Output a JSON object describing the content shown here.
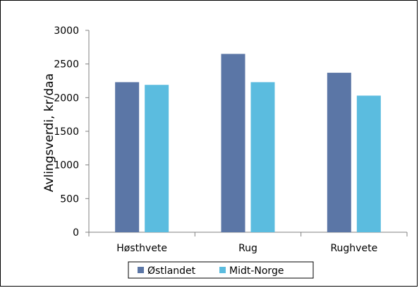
{
  "chart_data": {
    "type": "bar",
    "title": "",
    "xlabel": "",
    "ylabel": "Avlingsverdi, kr/daa",
    "categories": [
      "Høsthvete",
      "Rug",
      "Rughvete"
    ],
    "series": [
      {
        "name": "Østlandet",
        "values": [
          2230,
          2650,
          2370
        ],
        "color": "#5b76a6"
      },
      {
        "name": "Midt-Norge",
        "values": [
          2190,
          2230,
          2030
        ],
        "color": "#5bbcdf"
      }
    ],
    "ylim": [
      0,
      3000
    ],
    "yticks": [
      0,
      500,
      1000,
      1500,
      2000,
      2500,
      3000
    ],
    "grid": false,
    "legend_position": "bottom"
  }
}
